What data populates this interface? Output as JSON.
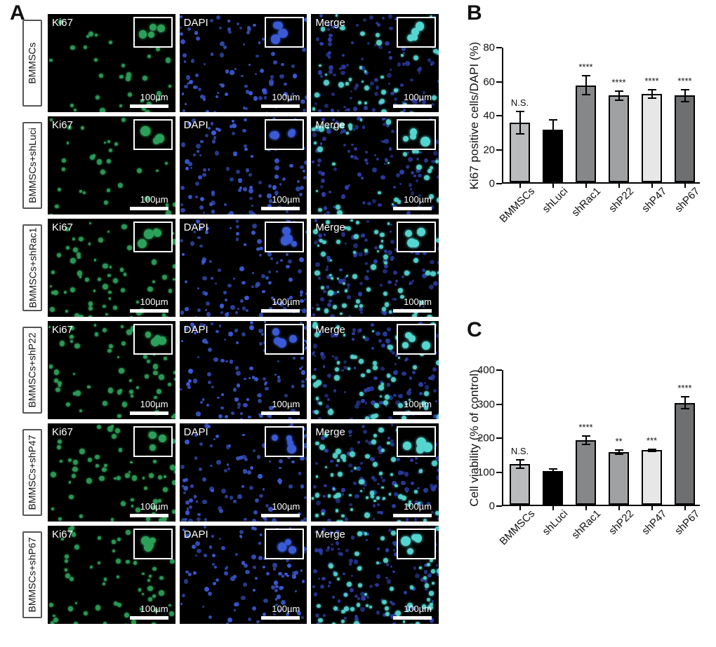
{
  "panelA": {
    "rows": [
      "BMMSCs",
      "BMMSCs+shLuci",
      "BMMSCs+shRac1",
      "BMMSCs+shP22",
      "BMMSCs+shP47",
      "BMMSCs+shP67"
    ],
    "cols": [
      "Ki67",
      "DAPI",
      "Merge"
    ],
    "scale_label": "100µm",
    "channel_colors": {
      "Ki67": "#2ca05a",
      "DAPI": "#3b5bd6",
      "Merge": "#54d6d0"
    },
    "density": {
      "BMMSCs": 0.34,
      "BMMSCs+shLuci": 0.3,
      "BMMSCs+shRac1": 0.62,
      "BMMSCs+shP22": 0.56,
      "BMMSCs+shP47": 0.58,
      "BMMSCs+shP67": 0.55
    }
  },
  "panelB": {
    "type": "bar",
    "title": "B",
    "y_title": "Ki67 positive cells/DAPI (%)",
    "ylim": [
      0,
      80
    ],
    "ytick_step": 20,
    "categories": [
      "BMMSCs",
      "shLuci",
      "shRac1",
      "shP22",
      "shP47",
      "shP67"
    ],
    "values": [
      35,
      31,
      57,
      51,
      52,
      51
    ],
    "errors": [
      7,
      6,
      6,
      3,
      3,
      4
    ],
    "annotations": [
      "N.S.",
      "",
      "****",
      "****",
      "****",
      "****"
    ],
    "bar_colors": [
      "#b9bbbd",
      "#000000",
      "#868789",
      "#9fa1a3",
      "#e7e7e7",
      "#6d6f71"
    ],
    "bar_width": 0.62,
    "background": "#ffffff"
  },
  "panelC": {
    "type": "bar",
    "title": "C",
    "y_title": "Cell viability (% of control)",
    "ylim": [
      0,
      400
    ],
    "ytick_step": 100,
    "categories": [
      "BMMSCs",
      "shLuci",
      "shRac1",
      "shP22",
      "shP47",
      "shP67"
    ],
    "values": [
      120,
      100,
      190,
      155,
      160,
      300
    ],
    "errors": [
      15,
      8,
      15,
      8,
      6,
      20
    ],
    "annotations": [
      "N.S.",
      "",
      "****",
      "**",
      "***",
      "****"
    ],
    "bar_colors": [
      "#b9bbbd",
      "#000000",
      "#868789",
      "#9fa1a3",
      "#e7e7e7",
      "#6d6f71"
    ],
    "bar_width": 0.62,
    "background": "#ffffff"
  },
  "letters": {
    "A": "A",
    "B": "B",
    "C": "C"
  }
}
